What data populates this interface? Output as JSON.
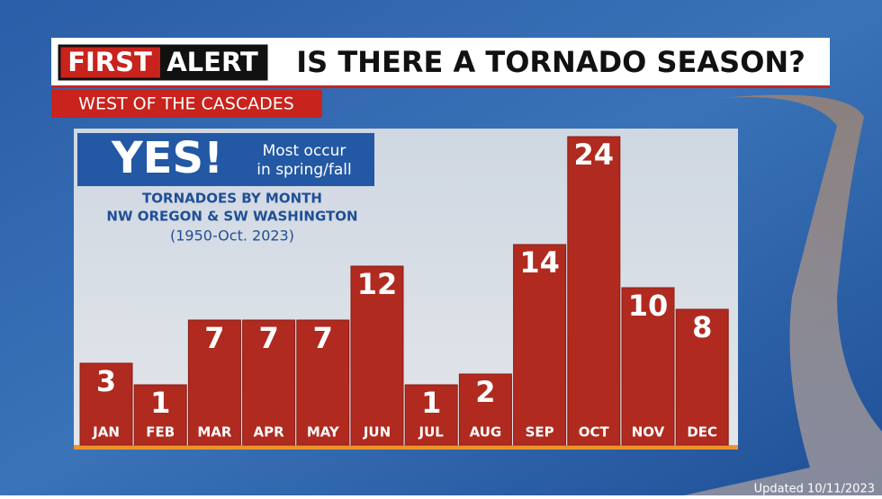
{
  "header": {
    "brand": [
      "FIRST",
      "ALERT"
    ],
    "title": "IS THERE A TORNADO SEASON?",
    "region": "WEST OF THE CASCADES"
  },
  "callout": {
    "headline": "YES!",
    "note": [
      "Most occur",
      "in spring/fall"
    ]
  },
  "chart_data": {
    "type": "bar",
    "title": "TORNADOES BY MONTH",
    "subtitle": "NW OREGON & SW WASHINGTON",
    "period": "(1950-Oct. 2023)",
    "categories": [
      "JAN",
      "FEB",
      "MAR",
      "APR",
      "MAY",
      "JUN",
      "JUL",
      "AUG",
      "SEP",
      "OCT",
      "NOV",
      "DEC"
    ],
    "values": [
      3,
      1,
      7,
      7,
      7,
      12,
      1,
      2,
      14,
      24,
      10,
      8
    ],
    "color": "#b02a1f"
  },
  "footer": {
    "updated": "Updated 10/11/2023"
  }
}
